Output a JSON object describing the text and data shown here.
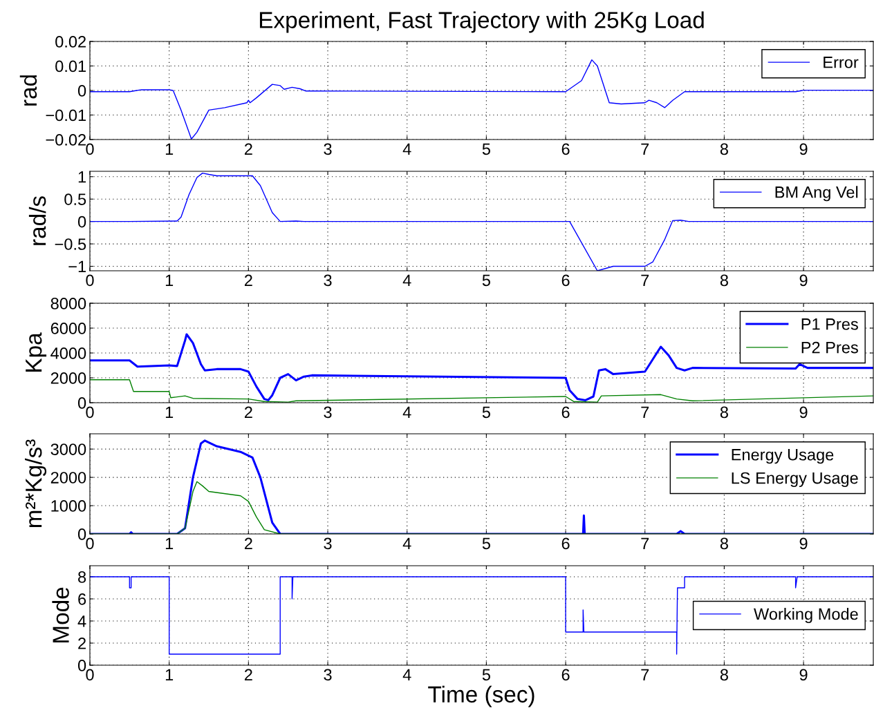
{
  "chart_data": [
    {
      "type": "line",
      "title": "Experiment, Fast Trajectory with 25Kg Load",
      "ylabel": "rad",
      "xlim": [
        0,
        9.88
      ],
      "xticks": [
        0,
        1,
        2,
        3,
        4,
        5,
        6,
        7,
        8,
        9
      ],
      "ylim": [
        -0.02,
        0.02
      ],
      "yticks": [
        {
          "value": -0.02,
          "label": "−0.02"
        },
        {
          "value": -0.01,
          "label": "−0.01"
        },
        0,
        0.01,
        0.02
      ],
      "grid": true,
      "legend": "top right",
      "line_style": "solid",
      "series": [
        {
          "name": "Error",
          "color": "#0000ff",
          "x": [
            0,
            0.5,
            0.55,
            0.65,
            1.0,
            1.05,
            1.15,
            1.28,
            1.35,
            1.5,
            1.7,
            1.98,
            2.0,
            2.02,
            2.1,
            2.3,
            2.4,
            2.45,
            2.55,
            2.65,
            2.72,
            2.8,
            6.0,
            6.2,
            6.33,
            6.4,
            6.55,
            6.7,
            7.0,
            7.05,
            7.15,
            7.25,
            7.35,
            7.5,
            8.9,
            8.95,
            9.0,
            9.88
          ],
          "values": [
            -0.0005,
            -0.0005,
            -0.0002,
            0.0003,
            0.0003,
            0,
            -0.008,
            -0.0198,
            -0.017,
            -0.008,
            -0.007,
            -0.005,
            -0.004,
            -0.005,
            -0.003,
            0.0025,
            0.002,
            0.0005,
            0.0013,
            0.0007,
            -0.0002,
            -0.0002,
            -0.0005,
            0.004,
            0.0125,
            0.01,
            -0.005,
            -0.0055,
            -0.005,
            -0.004,
            -0.005,
            -0.007,
            -0.004,
            -0.0005,
            -0.0005,
            -0.0002,
            0.0001,
            0.0001
          ]
        }
      ]
    },
    {
      "type": "line",
      "ylabel": "rad/s",
      "xlim": [
        0,
        9.88
      ],
      "xticks": [
        0,
        1,
        2,
        3,
        4,
        5,
        6,
        7,
        8,
        9
      ],
      "ylim": [
        -1.1,
        1.12
      ],
      "yticks": [
        {
          "value": -1,
          "label": "−1"
        },
        {
          "value": -0.5,
          "label": "−0.5"
        },
        0,
        0.5,
        1
      ],
      "grid": true,
      "legend": "top right",
      "line_style": "solid",
      "series": [
        {
          "name": "BM Ang Vel",
          "color": "#0000ff",
          "x": [
            0,
            0.5,
            1.1,
            1.15,
            1.25,
            1.35,
            1.42,
            1.5,
            1.6,
            2.05,
            2.15,
            2.3,
            2.4,
            2.6,
            2.7,
            6.05,
            6.4,
            6.5,
            6.6,
            7.0,
            7.1,
            7.25,
            7.35,
            7.45,
            7.55,
            9.88
          ],
          "values": [
            0,
            0,
            0.01,
            0.1,
            0.6,
            0.98,
            1.08,
            1.05,
            1.02,
            1.02,
            0.8,
            0.2,
            0,
            0.01,
            0,
            0,
            -1.1,
            -1.05,
            -1.0,
            -1.0,
            -0.9,
            -0.4,
            0.02,
            0.03,
            0,
            0
          ]
        }
      ]
    },
    {
      "type": "line",
      "ylabel": "Kpa",
      "xlim": [
        0,
        9.88
      ],
      "xticks": [
        0,
        1,
        2,
        3,
        4,
        5,
        6,
        7,
        8,
        9
      ],
      "ylim": [
        0,
        8000
      ],
      "yticks": [
        0,
        2000,
        4000,
        6000,
        8000
      ],
      "grid": true,
      "legend": "top right",
      "line_style": "solid",
      "series": [
        {
          "name": "P1 Pres",
          "color": "#0000ff",
          "x": [
            0,
            0.5,
            0.6,
            1.0,
            1.1,
            1.2,
            1.22,
            1.3,
            1.4,
            1.45,
            1.6,
            1.9,
            2.0,
            2.1,
            2.2,
            2.25,
            2.3,
            2.4,
            2.5,
            2.6,
            2.7,
            2.8,
            6.0,
            6.05,
            6.15,
            6.25,
            6.35,
            6.42,
            6.5,
            6.6,
            7.0,
            7.1,
            7.2,
            7.3,
            7.4,
            7.5,
            7.6,
            8.9,
            8.95,
            9.05,
            9.88
          ],
          "values": [
            3400,
            3400,
            2900,
            3000,
            2950,
            5000,
            5500,
            4800,
            3100,
            2600,
            2700,
            2700,
            2500,
            1300,
            300,
            200,
            600,
            2000,
            2300,
            1800,
            2100,
            2200,
            2000,
            1000,
            300,
            200,
            500,
            2600,
            2700,
            2300,
            2500,
            3500,
            4500,
            3800,
            2800,
            2600,
            2800,
            2750,
            3100,
            2800,
            2800
          ]
        },
        {
          "name": "P2 Pres",
          "color": "#008000",
          "x": [
            0,
            0.5,
            0.55,
            1.0,
            1.02,
            1.2,
            1.3,
            2.0,
            2.2,
            2.5,
            2.6,
            6.0,
            6.1,
            6.4,
            6.45,
            7.2,
            7.4,
            7.6,
            9.88
          ],
          "values": [
            1850,
            1850,
            900,
            900,
            400,
            550,
            350,
            300,
            100,
            50,
            150,
            500,
            100,
            50,
            550,
            650,
            300,
            150,
            550
          ]
        }
      ]
    },
    {
      "type": "line",
      "ylabel": "m²*Kg/s³",
      "xlim": [
        0,
        9.88
      ],
      "xticks": [
        0,
        1,
        2,
        3,
        4,
        5,
        6,
        7,
        8,
        9
      ],
      "ylim": [
        0,
        3540
      ],
      "yticks": [
        0,
        1000,
        2000,
        3000
      ],
      "grid": true,
      "legend": "top right",
      "line_style": "solid",
      "series": [
        {
          "name": "Energy Usage",
          "color": "#0000ff",
          "x": [
            0,
            0.5,
            0.52,
            0.54,
            1.1,
            1.2,
            1.3,
            1.4,
            1.45,
            1.6,
            1.9,
            2.05,
            2.15,
            2.3,
            2.4,
            6.22,
            6.23,
            6.24,
            7.4,
            7.45,
            7.5,
            9.88
          ],
          "values": [
            0,
            0,
            60,
            0,
            0,
            200,
            2000,
            3200,
            3300,
            3100,
            2900,
            2700,
            2000,
            400,
            0,
            0,
            650,
            0,
            0,
            100,
            0,
            0
          ]
        },
        {
          "name": "LS Energy Usage",
          "color": "#008000",
          "x": [
            0,
            1.1,
            1.2,
            1.3,
            1.35,
            1.42,
            1.5,
            1.9,
            2.0,
            2.1,
            2.2,
            2.4,
            9.88
          ],
          "values": [
            0,
            0,
            200,
            1500,
            1850,
            1700,
            1500,
            1350,
            1150,
            600,
            150,
            0,
            0
          ]
        }
      ]
    },
    {
      "type": "line",
      "ylabel": "Mode",
      "xlabel": "Time (sec)",
      "xlim": [
        0,
        9.88
      ],
      "xticks": [
        0,
        1,
        2,
        3,
        4,
        5,
        6,
        7,
        8,
        9
      ],
      "ylim": [
        0,
        9
      ],
      "yticks": [
        0,
        2,
        4,
        6,
        8
      ],
      "grid": true,
      "legend": "right",
      "line_style": "solid",
      "series": [
        {
          "name": "Working Mode",
          "color": "#0000ff",
          "x": [
            0,
            0.5,
            0.5,
            0.52,
            0.52,
            1.0,
            1.0,
            2.4,
            2.4,
            2.55,
            2.55,
            2.56,
            6.0,
            6.0,
            6.22,
            6.22,
            6.23,
            7.4,
            7.4,
            7.41,
            7.5,
            7.5,
            8.9,
            8.9,
            8.92,
            9.88
          ],
          "values": [
            8,
            8,
            7,
            7,
            8,
            8,
            1,
            1,
            8,
            8,
            6,
            8,
            8,
            3,
            3,
            5,
            3,
            3,
            1,
            7,
            7,
            8,
            8,
            7,
            8,
            8
          ]
        }
      ]
    }
  ]
}
